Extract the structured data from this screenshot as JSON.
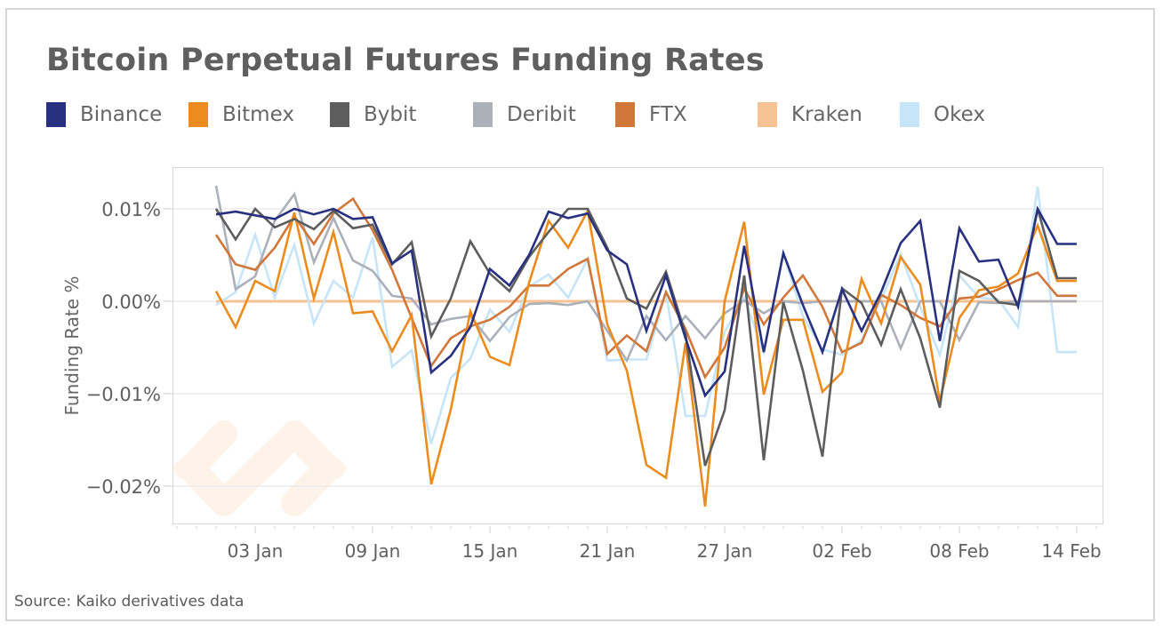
{
  "chart_data": {
    "type": "line",
    "title": "Bitcoin Perpetual Futures Funding Rates",
    "ylabel": "Funding Rate %",
    "xlabel": "",
    "source": "Source: Kaiko derivatives data",
    "ylim": [
      -0.0225,
      0.0145
    ],
    "yticks": [
      0.01,
      0.0,
      -0.01,
      -0.02
    ],
    "ytick_labels": [
      "0.01%",
      "0.00%",
      "−0.01%",
      "−0.02%"
    ],
    "x_start_day": 0,
    "x_range_days": [
      -2.2,
      45.4
    ],
    "xticks_day": [
      2,
      8,
      14,
      20,
      26,
      32,
      38,
      44
    ],
    "xtick_labels": [
      "03 Jan",
      "09 Jan",
      "15 Jan",
      "21 Jan",
      "27 Jan",
      "02 Feb",
      "08 Feb",
      "14 Feb"
    ],
    "grid": true,
    "legend_position": "top",
    "series": [
      {
        "name": "Binance",
        "color": "#27317f",
        "values": [
          0.0094,
          0.0097,
          0.0093,
          0.0089,
          0.01,
          0.0094,
          0.01,
          0.0089,
          0.0091,
          0.0041,
          0.0055,
          -0.0077,
          -0.0059,
          -0.0028,
          0.0035,
          0.0017,
          0.005,
          0.0097,
          0.009,
          0.0095,
          0.0055,
          0.004,
          -0.0032,
          0.0028,
          -0.004,
          -0.0102,
          -0.0076,
          0.006,
          -0.0055,
          0.0052,
          -0.0004,
          -0.0055,
          0.0013,
          -0.0032,
          0.001,
          0.0063,
          0.0087,
          -0.0043,
          0.0079,
          0.0043,
          0.0045,
          -0.0006,
          0.01,
          0.0062,
          0.0062
        ]
      },
      {
        "name": "Bitmex",
        "color": "#ec8c1f",
        "values": [
          0.0011,
          -0.0028,
          0.0022,
          0.0011,
          0.0096,
          0.0003,
          0.0075,
          -0.0013,
          -0.0011,
          -0.0054,
          -0.0015,
          -0.0198,
          -0.0117,
          -0.0011,
          -0.006,
          -0.0069,
          0.002,
          0.0087,
          0.0058,
          0.0098,
          -0.0025,
          -0.0075,
          -0.0177,
          -0.0191,
          -0.0045,
          -0.0222,
          0.0,
          0.0086,
          -0.0101,
          -0.002,
          -0.002,
          -0.0098,
          -0.0077,
          0.0024,
          -0.0024,
          0.0048,
          0.0018,
          -0.0108,
          -0.0018,
          0.0012,
          0.0016,
          0.003,
          0.0082,
          0.0022,
          0.0022
        ]
      },
      {
        "name": "Bybit",
        "color": "#5d5d5d",
        "values": [
          0.01,
          0.0067,
          0.01,
          0.008,
          0.0089,
          0.0078,
          0.0098,
          0.0079,
          0.0083,
          0.004,
          0.0064,
          -0.0038,
          0.0003,
          0.0065,
          0.003,
          0.0011,
          0.0048,
          0.0075,
          0.01,
          0.01,
          0.0058,
          0.0003,
          -0.0008,
          0.0032,
          -0.0035,
          -0.0178,
          -0.0118,
          0.0028,
          -0.0172,
          -0.0001,
          -0.0075,
          -0.0168,
          0.0014,
          -0.0002,
          -0.0047,
          0.0013,
          -0.004,
          -0.0115,
          0.0033,
          0.0022,
          -0.0001,
          -0.0004,
          0.01,
          0.0025,
          0.0025
        ]
      },
      {
        "name": "Deribit",
        "color": "#abb0b9",
        "values": [
          0.0125,
          0.0013,
          0.0027,
          0.0087,
          0.0116,
          0.0042,
          0.009,
          0.0044,
          0.0033,
          0.0006,
          0.0003,
          -0.0025,
          -0.0019,
          -0.0016,
          -0.0043,
          -0.0017,
          -0.0003,
          -0.0002,
          -0.0004,
          0.0,
          -0.0032,
          -0.0064,
          -0.0016,
          -0.0042,
          -0.0016,
          -0.004,
          -0.0013,
          0.0001,
          -0.0013,
          0.0,
          -0.0002,
          0.0,
          0.0,
          0.0,
          0.0,
          -0.0051,
          0.0,
          0.0,
          -0.0042,
          -0.0001,
          -0.0002,
          0.0,
          0.0,
          0.0,
          0.0
        ]
      },
      {
        "name": "FTX",
        "color": "#d1773a",
        "values": [
          0.0072,
          0.004,
          0.0034,
          0.0058,
          0.0092,
          0.0062,
          0.0095,
          0.0111,
          0.0077,
          0.0034,
          -0.0018,
          -0.007,
          -0.004,
          -0.0027,
          -0.002,
          -0.0006,
          0.0017,
          0.0017,
          0.0035,
          0.0046,
          -0.0057,
          -0.0037,
          -0.0054,
          0.001,
          -0.003,
          -0.0082,
          -0.005,
          0.0014,
          -0.0025,
          0.0004,
          0.0028,
          -0.0006,
          -0.0055,
          -0.0045,
          0.0007,
          -0.0004,
          -0.0018,
          -0.0027,
          0.0003,
          0.0005,
          0.0013,
          0.0023,
          0.0031,
          0.0006,
          0.0006
        ]
      },
      {
        "name": "Kraken",
        "color": "#f5c293",
        "values": [
          0,
          0,
          0,
          0,
          0,
          0,
          0,
          0,
          0,
          0,
          0,
          0,
          0,
          0,
          0,
          0,
          0,
          0,
          0,
          0,
          0,
          0,
          0,
          0,
          0,
          0,
          0,
          0,
          0,
          0,
          0,
          0,
          0,
          0,
          0,
          0,
          0,
          0,
          0,
          0,
          0,
          0,
          0,
          0,
          0
        ]
      },
      {
        "name": "Okex",
        "color": "#c7e5f8",
        "values": [
          -0.0004,
          0.001,
          0.0072,
          0.0004,
          0.0061,
          -0.0024,
          0.0022,
          0.0004,
          0.0069,
          -0.0071,
          -0.0053,
          -0.0154,
          -0.0083,
          -0.0062,
          -0.0009,
          -0.0033,
          0.0016,
          0.0029,
          0.0004,
          0.0046,
          -0.0064,
          -0.0063,
          -0.0063,
          0.001,
          -0.0124,
          -0.0124,
          -0.0033,
          0.0004,
          -0.0055,
          0.0052,
          -0.0016,
          -0.0052,
          -0.0058,
          -0.0042,
          0.0002,
          0.0051,
          -0.0006,
          -0.0058,
          0.0028,
          0.0004,
          0.0002,
          -0.0028,
          0.0124,
          -0.0055,
          -0.0055
        ]
      }
    ]
  }
}
